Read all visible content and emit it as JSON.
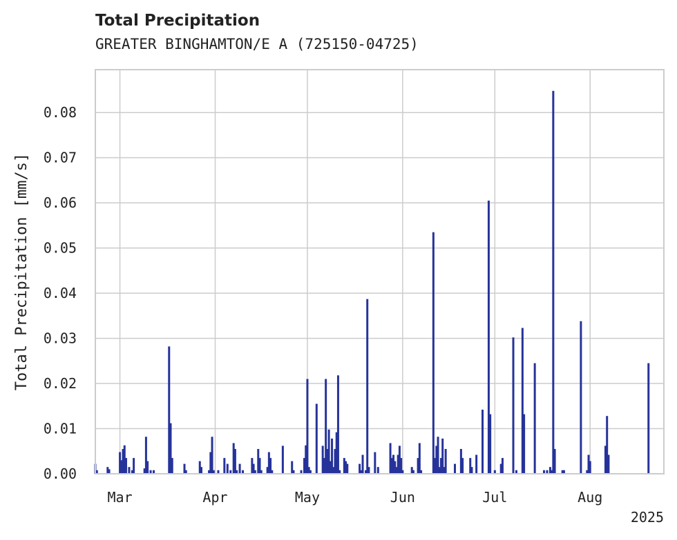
{
  "chart_data": {
    "type": "bar",
    "title": "Total Precipitation",
    "subtitle": "GREATER BINGHAMTON/E A (725150-04725)",
    "ylabel": "Total Precipitation [mm/s]",
    "xlabel": "",
    "year_label": "2025",
    "x_range": [
      "2025-02-21",
      "2025-08-25"
    ],
    "ylim": [
      0,
      0.0895
    ],
    "y_ticks": [
      0.0,
      0.01,
      0.02,
      0.03,
      0.04,
      0.05,
      0.06,
      0.07,
      0.08
    ],
    "y_tick_labels": [
      "0.00",
      "0.01",
      "0.02",
      "0.03",
      "0.04",
      "0.05",
      "0.06",
      "0.07",
      "0.08"
    ],
    "x_ticks": [
      {
        "date": "2025-03-01",
        "label": "Mar"
      },
      {
        "date": "2025-04-01",
        "label": "Apr"
      },
      {
        "date": "2025-05-01",
        "label": "May"
      },
      {
        "date": "2025-06-01",
        "label": "Jun"
      },
      {
        "date": "2025-07-01",
        "label": "Jul"
      },
      {
        "date": "2025-08-01",
        "label": "Aug"
      }
    ],
    "grid": true,
    "colors": {
      "bar": "#26339a",
      "grid": "#cccccc",
      "axis": "#cccccc",
      "text": "#222222"
    },
    "points": [
      [
        "2025-02-21",
        0.0022
      ],
      [
        "2025-02-21T12",
        0.0008
      ],
      [
        "2025-02-25",
        0.0015
      ],
      [
        "2025-02-25T12",
        0.001
      ],
      [
        "2025-03-01",
        0.0048
      ],
      [
        "2025-03-01T12",
        0.003
      ],
      [
        "2025-03-02",
        0.0055
      ],
      [
        "2025-03-02T12",
        0.0063
      ],
      [
        "2025-03-03",
        0.0035
      ],
      [
        "2025-03-04",
        0.0015
      ],
      [
        "2025-03-05",
        0.0008
      ],
      [
        "2025-03-05T12",
        0.0035
      ],
      [
        "2025-03-09",
        0.0012
      ],
      [
        "2025-03-09T12",
        0.0082
      ],
      [
        "2025-03-10",
        0.0028
      ],
      [
        "2025-03-11",
        0.0008
      ],
      [
        "2025-03-12",
        0.0008
      ],
      [
        "2025-03-17",
        0.0282
      ],
      [
        "2025-03-17T12",
        0.0112
      ],
      [
        "2025-03-18",
        0.0035
      ],
      [
        "2025-03-22",
        0.0022
      ],
      [
        "2025-03-22T12",
        0.0008
      ],
      [
        "2025-03-27",
        0.0028
      ],
      [
        "2025-03-27T12",
        0.0015
      ],
      [
        "2025-03-30",
        0.0008
      ],
      [
        "2025-03-30T12",
        0.0048
      ],
      [
        "2025-03-31",
        0.0082
      ],
      [
        "2025-03-31T12",
        0.0008
      ],
      [
        "2025-04-02",
        0.0008
      ],
      [
        "2025-04-04",
        0.0035
      ],
      [
        "2025-04-05",
        0.0022
      ],
      [
        "2025-04-06",
        0.0008
      ],
      [
        "2025-04-07",
        0.0068
      ],
      [
        "2025-04-07T12",
        0.0055
      ],
      [
        "2025-04-08",
        0.0008
      ],
      [
        "2025-04-09",
        0.0022
      ],
      [
        "2025-04-10",
        0.0008
      ],
      [
        "2025-04-13",
        0.0035
      ],
      [
        "2025-04-13T12",
        0.0022
      ],
      [
        "2025-04-14",
        0.0008
      ],
      [
        "2025-04-15",
        0.0055
      ],
      [
        "2025-04-15T12",
        0.0035
      ],
      [
        "2025-04-16",
        0.0008
      ],
      [
        "2025-04-18",
        0.0015
      ],
      [
        "2025-04-18T12",
        0.0048
      ],
      [
        "2025-04-19",
        0.0035
      ],
      [
        "2025-04-19T12",
        0.0008
      ],
      [
        "2025-04-23",
        0.0062
      ],
      [
        "2025-04-26",
        0.0028
      ],
      [
        "2025-04-26T12",
        0.0008
      ],
      [
        "2025-04-29",
        0.0008
      ],
      [
        "2025-04-30",
        0.0035
      ],
      [
        "2025-04-30T12",
        0.0063
      ],
      [
        "2025-05-01",
        0.021
      ],
      [
        "2025-05-01T12",
        0.0015
      ],
      [
        "2025-05-02",
        0.0008
      ],
      [
        "2025-05-04",
        0.0155
      ],
      [
        "2025-05-06",
        0.0062
      ],
      [
        "2025-05-06T12",
        0.0035
      ],
      [
        "2025-05-07",
        0.021
      ],
      [
        "2025-05-07T12",
        0.0055
      ],
      [
        "2025-05-08",
        0.0098
      ],
      [
        "2025-05-08T12",
        0.0028
      ],
      [
        "2025-05-09",
        0.0078
      ],
      [
        "2025-05-09T12",
        0.0015
      ],
      [
        "2025-05-10",
        0.0055
      ],
      [
        "2025-05-10T12",
        0.0092
      ],
      [
        "2025-05-11",
        0.0218
      ],
      [
        "2025-05-11T12",
        0.0008
      ],
      [
        "2025-05-13",
        0.0035
      ],
      [
        "2025-05-13T12",
        0.0028
      ],
      [
        "2025-05-14",
        0.0022
      ],
      [
        "2025-05-18",
        0.0022
      ],
      [
        "2025-05-18T12",
        0.0008
      ],
      [
        "2025-05-19",
        0.0042
      ],
      [
        "2025-05-20",
        0.0008
      ],
      [
        "2025-05-20T12",
        0.0387
      ],
      [
        "2025-05-21",
        0.0015
      ],
      [
        "2025-05-23",
        0.0048
      ],
      [
        "2025-05-24",
        0.0015
      ],
      [
        "2025-05-28",
        0.0068
      ],
      [
        "2025-05-28T12",
        0.0035
      ],
      [
        "2025-05-29",
        0.0042
      ],
      [
        "2025-05-29T12",
        0.0028
      ],
      [
        "2025-05-30",
        0.0015
      ],
      [
        "2025-05-30T12",
        0.0042
      ],
      [
        "2025-05-31",
        0.0062
      ],
      [
        "2025-05-31T12",
        0.0035
      ],
      [
        "2025-06-01",
        0.0008
      ],
      [
        "2025-06-04",
        0.0015
      ],
      [
        "2025-06-04T12",
        0.0008
      ],
      [
        "2025-06-06",
        0.0035
      ],
      [
        "2025-06-06T12",
        0.0068
      ],
      [
        "2025-06-07",
        0.0008
      ],
      [
        "2025-06-11",
        0.0535
      ],
      [
        "2025-06-11T12",
        0.0035
      ],
      [
        "2025-06-12",
        0.0062
      ],
      [
        "2025-06-12T12",
        0.0082
      ],
      [
        "2025-06-13",
        0.0015
      ],
      [
        "2025-06-13T12",
        0.0035
      ],
      [
        "2025-06-14",
        0.0078
      ],
      [
        "2025-06-14T12",
        0.0015
      ],
      [
        "2025-06-15",
        0.0055
      ],
      [
        "2025-06-18",
        0.0022
      ],
      [
        "2025-06-20",
        0.0055
      ],
      [
        "2025-06-20T12",
        0.0035
      ],
      [
        "2025-06-23",
        0.0035
      ],
      [
        "2025-06-23T12",
        0.0015
      ],
      [
        "2025-06-25",
        0.0042
      ],
      [
        "2025-06-27",
        0.0142
      ],
      [
        "2025-06-29",
        0.0605
      ],
      [
        "2025-06-29T12",
        0.0132
      ],
      [
        "2025-07-01",
        0.0008
      ],
      [
        "2025-07-03",
        0.0022
      ],
      [
        "2025-07-03T12",
        0.0035
      ],
      [
        "2025-07-07",
        0.0302
      ],
      [
        "2025-07-08",
        0.0008
      ],
      [
        "2025-07-10",
        0.0323
      ],
      [
        "2025-07-10T12",
        0.0132
      ],
      [
        "2025-07-14",
        0.0245
      ],
      [
        "2025-07-17",
        0.0008
      ],
      [
        "2025-07-18",
        0.0008
      ],
      [
        "2025-07-19",
        0.0015
      ],
      [
        "2025-07-19T12",
        0.0008
      ],
      [
        "2025-07-20",
        0.0848
      ],
      [
        "2025-07-20T12",
        0.0055
      ],
      [
        "2025-07-23",
        0.0008
      ],
      [
        "2025-07-23T12",
        0.0008
      ],
      [
        "2025-07-29",
        0.0338
      ],
      [
        "2025-07-31",
        0.0008
      ],
      [
        "2025-07-31T12",
        0.0042
      ],
      [
        "2025-08-01",
        0.0028
      ],
      [
        "2025-08-06",
        0.0062
      ],
      [
        "2025-08-06T12",
        0.0128
      ],
      [
        "2025-08-07",
        0.0042
      ],
      [
        "2025-08-20",
        0.0245
      ]
    ]
  }
}
